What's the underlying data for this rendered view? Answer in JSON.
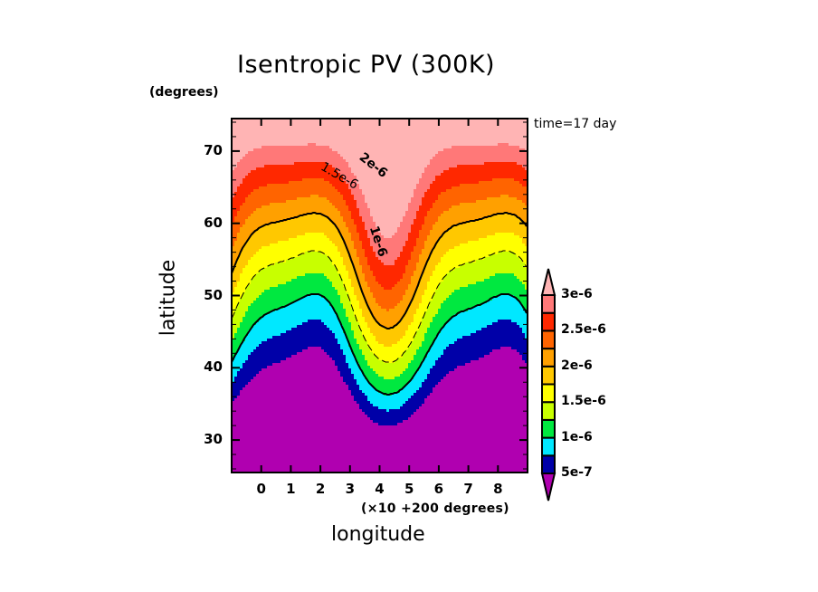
{
  "chart_data": {
    "type": "heatmap",
    "subtype": "filled-contour",
    "title": "Isentropic PV (300K)",
    "ylabel": "latitude",
    "y_units": "(degrees)",
    "xlabel": "longitude",
    "x_units": "(×10 +200 degrees)",
    "annotation": "time=17 day",
    "xlim": [
      -1,
      9
    ],
    "ylim": [
      25.5,
      74.5
    ],
    "x_ticks": [
      "0",
      "1",
      "2",
      "3",
      "4",
      "5",
      "6",
      "7",
      "8"
    ],
    "x_tick_values": [
      0,
      1,
      2,
      3,
      4,
      5,
      6,
      7,
      8
    ],
    "y_ticks": [
      "30",
      "40",
      "50",
      "60",
      "70"
    ],
    "y_tick_values": [
      30,
      40,
      50,
      60,
      70
    ],
    "contour_levels": [
      5e-07,
      7.5e-07,
      1e-06,
      1.25e-06,
      1.5e-06,
      1.75e-06,
      2e-06,
      2.25e-06,
      2.5e-06,
      2.75e-06,
      3e-06
    ],
    "fill_colors": [
      "#b000b0",
      "#0000a8",
      "#00e8ff",
      "#00e840",
      "#c8ff00",
      "#ffff00",
      "#ffc800",
      "#ffa000",
      "#ff6400",
      "#ff2800",
      "#ff7878",
      "#ffb4b4"
    ],
    "line_contours": [
      {
        "value": 1e-06,
        "label": "1e-6",
        "style": "thick"
      },
      {
        "value": 1.5e-06,
        "label": "1.5e-6",
        "style": "thin-dashed"
      },
      {
        "value": 2e-06,
        "label": "2e-6",
        "style": "thick"
      }
    ],
    "colorbar": {
      "labels": [
        "3e-6",
        "2.5e-6",
        "2e-6",
        "1.5e-6",
        "1e-6",
        "5e-7"
      ],
      "extend": "both"
    }
  }
}
